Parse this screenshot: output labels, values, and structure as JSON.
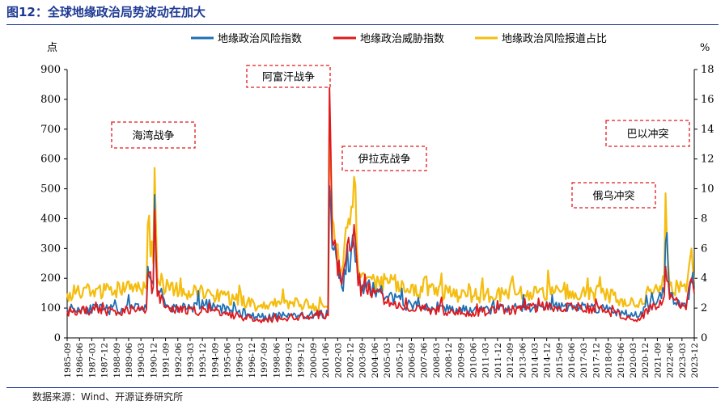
{
  "title": "图12：全球地缘政治局势波动在加大",
  "source": "数据来源：Wind、开源证券研究所",
  "chart_data": {
    "type": "line",
    "y_left_unit": "点",
    "y_right_unit": "%",
    "ylim_left": [
      0,
      900
    ],
    "ylim_right": [
      0,
      18
    ],
    "yticks_left": [
      "0",
      "100",
      "200",
      "300",
      "400",
      "500",
      "600",
      "700",
      "800",
      "900"
    ],
    "yticks_right": [
      "0",
      "2",
      "4",
      "6",
      "8",
      "10",
      "12",
      "14",
      "16",
      "18"
    ],
    "x_start": "1985-09",
    "x_end": "2023-12",
    "x_tick_labels": [
      "1985-09",
      "1986-06",
      "1987-03",
      "1987-12",
      "1988-09",
      "1989-06",
      "1990-03",
      "1990-12",
      "1991-09",
      "1992-06",
      "1993-03",
      "1993-12",
      "1994-09",
      "1995-06",
      "1996-03",
      "1996-12",
      "1997-09",
      "1998-06",
      "1999-03",
      "1999-12",
      "2000-09",
      "2001-06",
      "2002-03",
      "2002-12",
      "2003-09",
      "2004-06",
      "2005-03",
      "2005-12",
      "2006-09",
      "2007-06",
      "2008-03",
      "2008-12",
      "2009-09",
      "2010-06",
      "2011-03",
      "2011-12",
      "2012-09",
      "2013-06",
      "2014-03",
      "2014-12",
      "2015-09",
      "2016-06",
      "2017-03",
      "2017-12",
      "2018-09",
      "2019-06",
      "2020-03",
      "2020-12",
      "2021-09",
      "2022-06",
      "2023-03",
      "2023-12"
    ],
    "legend_position": "top",
    "series": [
      {
        "name": "地缘政治风险指数",
        "axis": "left",
        "color": "#1f6fb4",
        "points": [
          [
            "1985-09",
            100
          ],
          [
            "1988-01",
            95
          ],
          [
            "1990-07",
            100
          ],
          [
            "1990-08",
            240
          ],
          [
            "1990-12",
            180
          ],
          [
            "1991-01",
            480
          ],
          [
            "1991-03",
            150
          ],
          [
            "1991-12",
            100
          ],
          [
            "1994-06",
            110
          ],
          [
            "1997-06",
            70
          ],
          [
            "1999-06",
            75
          ],
          [
            "2001-08",
            80
          ],
          [
            "2001-09",
            510
          ],
          [
            "2001-11",
            300
          ],
          [
            "2002-06",
            170
          ],
          [
            "2003-03",
            310
          ],
          [
            "2003-06",
            180
          ],
          [
            "2004-06",
            160
          ],
          [
            "2006-06",
            110
          ],
          [
            "2010-06",
            90
          ],
          [
            "2015-06",
            110
          ],
          [
            "2018-06",
            100
          ],
          [
            "2020-06",
            70
          ],
          [
            "2022-02",
            150
          ],
          [
            "2022-03",
            320
          ],
          [
            "2022-06",
            140
          ],
          [
            "2023-06",
            100
          ],
          [
            "2023-10",
            190
          ],
          [
            "2023-12",
            170
          ]
        ]
      },
      {
        "name": "地缘政治威胁指数",
        "axis": "left",
        "color": "#e0191d",
        "points": [
          [
            "1985-09",
            90
          ],
          [
            "1988-01",
            90
          ],
          [
            "1990-07",
            95
          ],
          [
            "1990-08",
            210
          ],
          [
            "1990-12",
            170
          ],
          [
            "1991-01",
            430
          ],
          [
            "1991-03",
            140
          ],
          [
            "1991-12",
            95
          ],
          [
            "1994-06",
            90
          ],
          [
            "1997-06",
            60
          ],
          [
            "1999-06",
            70
          ],
          [
            "2001-08",
            75
          ],
          [
            "2001-09",
            850
          ],
          [
            "2001-11",
            330
          ],
          [
            "2002-06",
            180
          ],
          [
            "2003-03",
            380
          ],
          [
            "2003-06",
            175
          ],
          [
            "2004-06",
            150
          ],
          [
            "2006-06",
            100
          ],
          [
            "2010-06",
            85
          ],
          [
            "2015-06",
            105
          ],
          [
            "2018-06",
            95
          ],
          [
            "2020-06",
            55
          ],
          [
            "2022-02",
            140
          ],
          [
            "2022-03",
            240
          ],
          [
            "2022-06",
            130
          ],
          [
            "2023-06",
            95
          ],
          [
            "2023-10",
            200
          ],
          [
            "2023-12",
            150
          ]
        ]
      },
      {
        "name": "地缘政治风险报道占比",
        "axis": "right",
        "color": "#f5bd0f",
        "points": [
          [
            "1985-09",
            3.0
          ],
          [
            "1988-01",
            3.2
          ],
          [
            "1990-07",
            3.3
          ],
          [
            "1990-08",
            7.6
          ],
          [
            "1990-12",
            5.0
          ],
          [
            "1991-01",
            11.4
          ],
          [
            "1991-03",
            4.0
          ],
          [
            "1991-12",
            3.2
          ],
          [
            "1994-06",
            3.0
          ],
          [
            "1997-06",
            2.1
          ],
          [
            "1999-06",
            2.4
          ],
          [
            "2001-08",
            2.0
          ],
          [
            "2001-09",
            15.5
          ],
          [
            "2001-11",
            8.0
          ],
          [
            "2002-06",
            4.6
          ],
          [
            "2003-03",
            10.8
          ],
          [
            "2003-06",
            4.6
          ],
          [
            "2004-06",
            3.9
          ],
          [
            "2006-06",
            3.3
          ],
          [
            "2010-06",
            2.8
          ],
          [
            "2015-06",
            3.1
          ],
          [
            "2018-06",
            3.0
          ],
          [
            "2020-06",
            2.2
          ],
          [
            "2022-02",
            3.8
          ],
          [
            "2022-03",
            9.7
          ],
          [
            "2022-06",
            3.5
          ],
          [
            "2023-06",
            3.1
          ],
          [
            "2023-10",
            6.0
          ],
          [
            "2023-12",
            3.6
          ]
        ]
      }
    ],
    "annotations": [
      {
        "text": "海湾战争",
        "at": "1991-01"
      },
      {
        "text": "阿富汗战争",
        "at": "2001-09"
      },
      {
        "text": "伊拉克战争",
        "at": "2003-03"
      },
      {
        "text": "俄乌冲突",
        "at": "2022-03"
      },
      {
        "text": "巴以冲突",
        "at": "2023-10"
      }
    ]
  }
}
